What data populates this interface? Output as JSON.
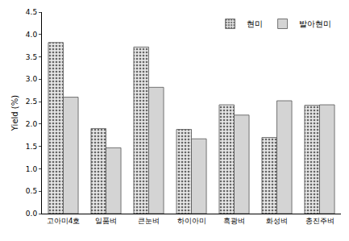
{
  "chart_data": {
    "type": "bar",
    "y_label": "Yield (%)",
    "categories": [
      "고아미4호",
      "일품벼",
      "큰눈벼",
      "하이아미",
      "흑광벼",
      "화성벼",
      "총진주벼"
    ],
    "series": [
      {
        "name": "현미",
        "color": "#e6e6e6",
        "marker": "dotted",
        "values": [
          3.82,
          1.9,
          3.72,
          1.88,
          2.43,
          1.7,
          2.42
        ]
      },
      {
        "name": "발아현미",
        "color": "#d4d4d4",
        "values": [
          2.6,
          1.47,
          2.82,
          1.67,
          2.2,
          2.52,
          2.43
        ]
      }
    ],
    "ylim": [
      0,
      4.5
    ],
    "yticks": [
      {
        "value": 0,
        "label": "0.0"
      },
      0.5,
      {
        "value": 1,
        "label": "1.0"
      },
      1.5,
      {
        "value": 2,
        "label": "2.0"
      },
      2.5,
      {
        "value": 3,
        "label": "3.0"
      },
      3.5,
      {
        "value": 4,
        "label": "4.0"
      },
      4.5
    ],
    "grid": false,
    "legend": "upper right"
  }
}
